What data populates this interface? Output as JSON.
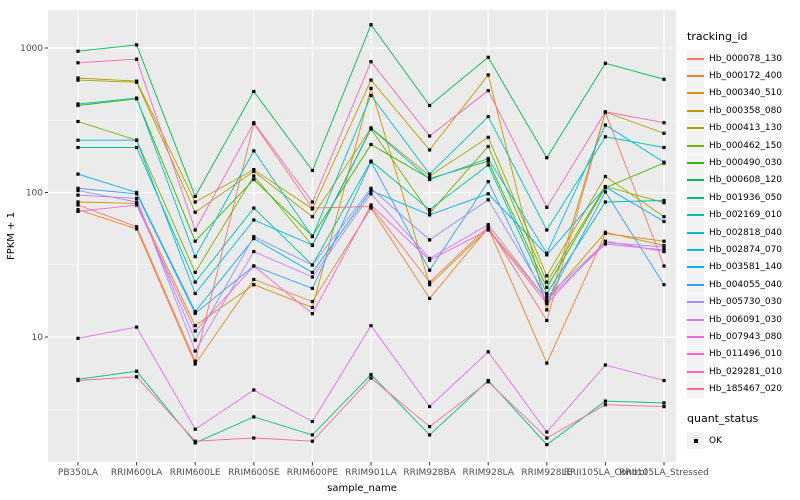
{
  "figure": {
    "background": "#FFFFFF",
    "panel_background": "#EBEBEB",
    "gridline_color": "#FFFFFF",
    "tick_label_color": "#4D4D4D",
    "point_color": "#000000"
  },
  "chart_data": {
    "type": "line",
    "xlabel": "sample_name",
    "ylabel": "FPKM + 1",
    "y_scale": "log10",
    "y_ticks": [
      10,
      100,
      1000
    ],
    "y_minor_ticks": [
      3.162,
      31.62,
      316.2
    ],
    "ylim": [
      1.36,
      1830
    ],
    "grid": true,
    "legend_position": "right",
    "point_shape": "filled-square",
    "categories": [
      "PB350LA",
      "RRIM600LA",
      "RRIM600LE",
      "RRIM600SE",
      "RRIM600PE",
      "RRIM901LA",
      "RRIM928BA",
      "RRIM928LA",
      "RRIM928LE",
      "RRII105LA_Control",
      "RRII105LA_Stressed"
    ],
    "series": [
      {
        "name": "Hb_000078_130",
        "color": "#F8766D",
        "values": [
          82,
          58,
          6.8,
          300,
          78,
          80,
          24,
          58,
          13,
          358,
          31
        ]
      },
      {
        "name": "Hb_000172_400",
        "color": "#EA8331",
        "values": [
          76,
          56,
          6.5,
          25,
          17.6,
          78,
          18.5,
          57,
          6.6,
          52,
          46
        ]
      },
      {
        "name": "Hb_000340_510",
        "color": "#D89000",
        "values": [
          86,
          84,
          12,
          23,
          16,
          525,
          23,
          56,
          18,
          53,
          43
        ]
      },
      {
        "name": "Hb_000358_080",
        "color": "#C09B00",
        "values": [
          620,
          590,
          86,
          144,
          77,
          600,
          197,
          650,
          15.4,
          360,
          257
        ]
      },
      {
        "name": "Hb_000413_130",
        "color": "#A3A500",
        "values": [
          600,
          580,
          73,
          140,
          68,
          280,
          130,
          241,
          26.5,
          129,
          68
        ]
      },
      {
        "name": "Hb_000462_150",
        "color": "#7CAE00",
        "values": [
          310,
          230,
          28,
          130,
          43,
          275,
          72,
          208,
          24,
          110,
          85
        ]
      },
      {
        "name": "Hb_000490_030",
        "color": "#39B600",
        "values": [
          400,
          445,
          46,
          123,
          50,
          215,
          125,
          165,
          22,
          108,
          160
        ]
      },
      {
        "name": "Hb_000608_120",
        "color": "#00BB4E",
        "values": [
          950,
          1050,
          94,
          500,
          142,
          1450,
          400,
          862,
          174,
          784,
          607
        ]
      },
      {
        "name": "Hb_001936_050",
        "color": "#00BF7D",
        "values": [
          5.1,
          5.8,
          1.85,
          2.8,
          2.1,
          5.5,
          2.1,
          5,
          1.8,
          3.6,
          3.5
        ]
      },
      {
        "name": "Hb_002169_010",
        "color": "#00C1A3",
        "values": [
          205,
          205,
          24,
          78,
          31.5,
          165,
          76,
          155,
          20,
          86,
          88
        ]
      },
      {
        "name": "Hb_002818_040",
        "color": "#00BFC4",
        "values": [
          410,
          450,
          36,
          194,
          49.5,
          470,
          134,
          335,
          55,
          243,
          205
        ]
      },
      {
        "name": "Hb_002874_070",
        "color": "#00BAE0",
        "values": [
          230,
          230,
          20,
          64.5,
          43.3,
          278,
          123,
          172,
          38,
          293,
          162
        ]
      },
      {
        "name": "Hb_003581_140",
        "color": "#00B0F6",
        "values": [
          134,
          100,
          15,
          48,
          28,
          103,
          70,
          98,
          37,
          109,
          63
        ]
      },
      {
        "name": "Hb_004055_040",
        "color": "#35A2FF",
        "values": [
          107,
          98,
          14.6,
          31,
          21.7,
          163,
          29,
          119,
          17.5,
          101,
          23
        ]
      },
      {
        "name": "Hb_005730_030",
        "color": "#9590FF",
        "values": [
          103,
          86,
          9.5,
          49.5,
          31.5,
          107,
          47,
          89,
          19,
          45,
          42
        ]
      },
      {
        "name": "Hb_006091_030",
        "color": "#C77CFF",
        "values": [
          96,
          91,
          8,
          39,
          26,
          98,
          35,
          60,
          18,
          44,
          40
        ]
      },
      {
        "name": "Hb_007943_080",
        "color": "#E76BF3",
        "values": [
          9.8,
          11.7,
          2.3,
          4.3,
          2.6,
          12,
          3.3,
          7.9,
          2.2,
          6.4,
          5
        ]
      },
      {
        "name": "Hb_011496_010",
        "color": "#FA62DB",
        "values": [
          74,
          82,
          11,
          31,
          14.5,
          82,
          34,
          55,
          17,
          46,
          39
        ]
      },
      {
        "name": "Hb_029281_010",
        "color": "#FF62BC",
        "values": [
          790,
          836,
          55,
          304,
          86,
          804,
          246,
          507,
          79,
          362,
          304
        ]
      },
      {
        "name": "Hb_185467_020",
        "color": "#FF6A98",
        "values": [
          5,
          5.3,
          1.9,
          2,
          1.9,
          5.2,
          2.4,
          4.9,
          2,
          3.4,
          3.3
        ]
      }
    ]
  },
  "legend": {
    "tracking_title": "tracking_id",
    "quant_title": "quant_status",
    "quant_items": [
      {
        "label": "OK"
      }
    ]
  }
}
